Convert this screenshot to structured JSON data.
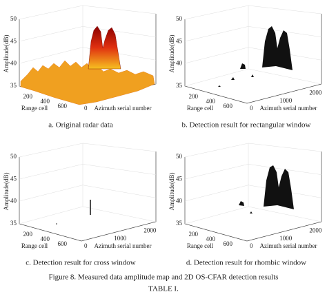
{
  "panels": [
    {
      "caption": "a. Original radar data",
      "z_label": "Amplitude(dB)",
      "z_ticks": [
        "50",
        "45",
        "40",
        "35"
      ],
      "range_label": "Range cell",
      "range_ticks": [
        "200",
        "400",
        "600"
      ],
      "azimuth_label": "Azimuth serial number",
      "azimuth_ticks": [
        "0"
      ]
    },
    {
      "caption": "b. Detection result for rectangular window",
      "z_label": "Amplitude(dB)",
      "z_ticks": [
        "50",
        "45",
        "40",
        "35"
      ],
      "range_label": "Range cell",
      "range_ticks": [
        "200",
        "400",
        "600"
      ],
      "azimuth_label": "Azimuth serial number",
      "azimuth_ticks": [
        "0",
        "1000",
        "2000"
      ]
    },
    {
      "caption": "c. Detection result for cross window",
      "z_label": "Amplitude(dB)",
      "z_ticks": [
        "50",
        "45",
        "40",
        "35"
      ],
      "range_label": "Range cell",
      "range_ticks": [
        "200",
        "400",
        "600"
      ],
      "azimuth_label": "Azimuth serial number",
      "azimuth_ticks": [
        "0",
        "1000",
        "2000"
      ]
    },
    {
      "caption": "d. Detection result for rhombic window",
      "z_label": "Amplitude(dB)",
      "z_ticks": [
        "50",
        "45",
        "40",
        "35"
      ],
      "range_label": "Range cell",
      "range_ticks": [
        "200",
        "400",
        "600"
      ],
      "azimuth_label": "Azimuth serial number",
      "azimuth_ticks": [
        "0",
        "1000",
        "2000"
      ]
    }
  ],
  "figure_caption": "Figure 8.  Measured data amplitude map and 2D OS-CFAR detection results",
  "table_caption": "TABLE I."
}
